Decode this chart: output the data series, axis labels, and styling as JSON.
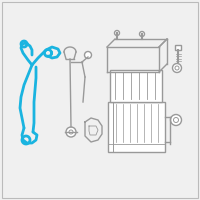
{
  "bg_color": "#f0f0f0",
  "border_color": "#bbbbbb",
  "cable_color": "#1ab4e0",
  "line_color": "#999999",
  "white": "#ffffff",
  "figsize": [
    2.0,
    2.0
  ],
  "dpi": 100
}
